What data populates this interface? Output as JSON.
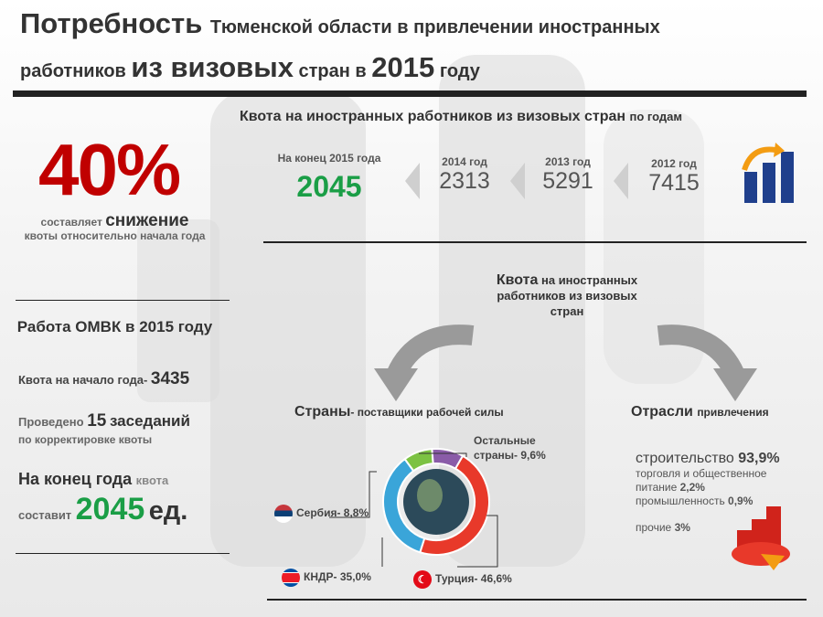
{
  "header": {
    "title_big": "Потребность",
    "title_small": "Тюменской области в привлечении иностранных",
    "line2_a": "работников",
    "line2_b": "из визовых",
    "line2_c": "стран в",
    "line2_d": "2015",
    "line2_e": "году"
  },
  "quota": {
    "title": "Квота на иностранных работников из визовых стран",
    "title_suffix": "по годам",
    "current_label": "На конец 2015 года",
    "current_value": "2045",
    "years": [
      {
        "label": "2014 год",
        "value": "2313"
      },
      {
        "label": "2013 год",
        "value": "5291"
      },
      {
        "label": "2012 год",
        "value": "7415"
      }
    ]
  },
  "reduction": {
    "percent": "40%",
    "line1_a": "составляет",
    "line1_b": "снижение",
    "line2": "квоты относительно начала года"
  },
  "omvk": {
    "title": "Работа ОМВК в 2015 году",
    "start_label": "Квота на начало года-",
    "start_value": "3435",
    "held_prefix": "Проведено",
    "held_value": "15",
    "held_suffix": "заседаний",
    "held_sub": "по корректировке квоты",
    "end_a": "На конец года",
    "end_b": "квота",
    "end_c": "составит",
    "end_value": "2045",
    "end_unit": "ед."
  },
  "kvota_center": {
    "a": "Квота",
    "b": "на иностранных работников из визовых стран"
  },
  "countries": {
    "head_a": "Страны",
    "head_b": "- поставщики рабочей силы",
    "items": [
      {
        "name": "Остальные страны- 9,6%",
        "color": "#8a5ca8"
      },
      {
        "name": "Сербия- 8,8%",
        "color": "#7cc243"
      },
      {
        "name": "КНДР- 35,0%",
        "color": "#3aa5d9"
      },
      {
        "name": "Турция- 46,6%",
        "color": "#e8392a"
      }
    ]
  },
  "chart_data": {
    "type": "pie",
    "categories": [
      "Турция",
      "КНДР",
      "Сербия",
      "Остальные страны"
    ],
    "values": [
      46.6,
      35.0,
      8.8,
      9.6
    ],
    "colors": [
      "#e8392a",
      "#3aa5d9",
      "#7cc243",
      "#8a5ca8"
    ]
  },
  "industries": {
    "head_a": "Отрасли",
    "head_b": "привлечения",
    "construction_a": "строительство",
    "construction_b": "93,9%",
    "trade_a": "торговля и общественное питание",
    "trade_b": "2,2%",
    "industry_a": "промышленность",
    "industry_b": "0,9%",
    "other_a": "прочие",
    "other_b": "3%"
  }
}
